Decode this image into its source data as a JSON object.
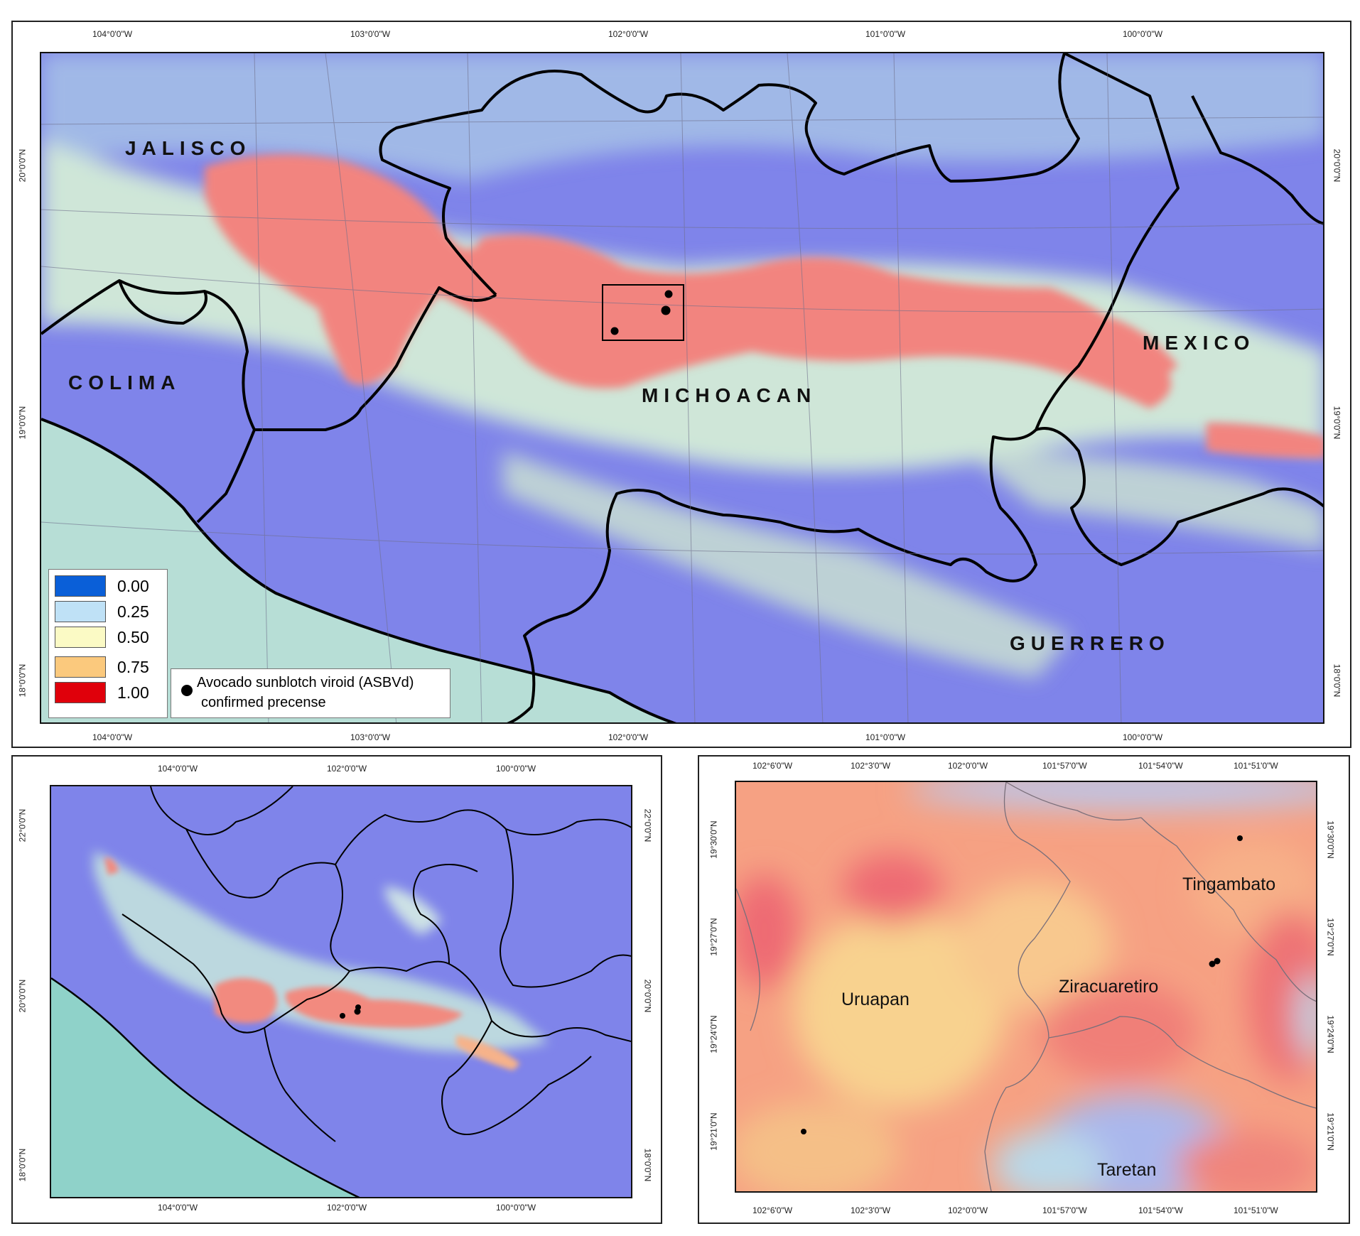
{
  "top_map": {
    "lon_ticks": [
      "104°0'0\"W",
      "103°0'0\"W",
      "102°0'0\"W",
      "101°0'0\"W",
      "100°0'0\"W"
    ],
    "lat_ticks": [
      "20°0'0\"N",
      "19°0'0\"N",
      "18°0'0\"N"
    ],
    "states": {
      "jalisco": "JALISCO",
      "colima": "COLIMA",
      "michoacan": "MICHOACAN",
      "mexico": "MEXICO",
      "guerrero": "GUERRERO"
    },
    "legend": [
      {
        "value": "0.00",
        "color": "#0a5fd8"
      },
      {
        "value": "0.25",
        "color": "#bfe1f6"
      },
      {
        "value": "0.50",
        "color": "#fbfac5"
      },
      {
        "value": "0.75",
        "color": "#fbc97d"
      },
      {
        "value": "1.00",
        "color": "#e0000b"
      }
    ],
    "point_legend": {
      "line1": "Avocado sunblotch viroid (ASBVd)",
      "line2": "confirmed precense"
    }
  },
  "overview_map": {
    "lon_ticks": [
      "104°0'0\"W",
      "102°0'0\"W",
      "100°0'0\"W"
    ],
    "lat_ticks": [
      "22°0'0\"N",
      "20°0'0\"N",
      "18°0'0\"N"
    ]
  },
  "detail_map": {
    "lon_ticks": [
      "102°6'0\"W",
      "102°3'0\"W",
      "102°0'0\"W",
      "101°57'0\"W",
      "101°54'0\"W",
      "101°51'0\"W"
    ],
    "lat_ticks": [
      "19°30'0\"N",
      "19°27'0\"N",
      "19°24'0\"N",
      "19°21'0\"N"
    ],
    "municipalities": {
      "tingambato": "Tingambato",
      "uruapan": "Uruapan",
      "ziracuaretiro": "Ziracuaretiro",
      "taretan": "Taretan"
    }
  },
  "colors": {
    "sea": "#b7ded6",
    "low": "#7d80ec",
    "high": "#f2787b",
    "mid": "#f8c49a"
  }
}
